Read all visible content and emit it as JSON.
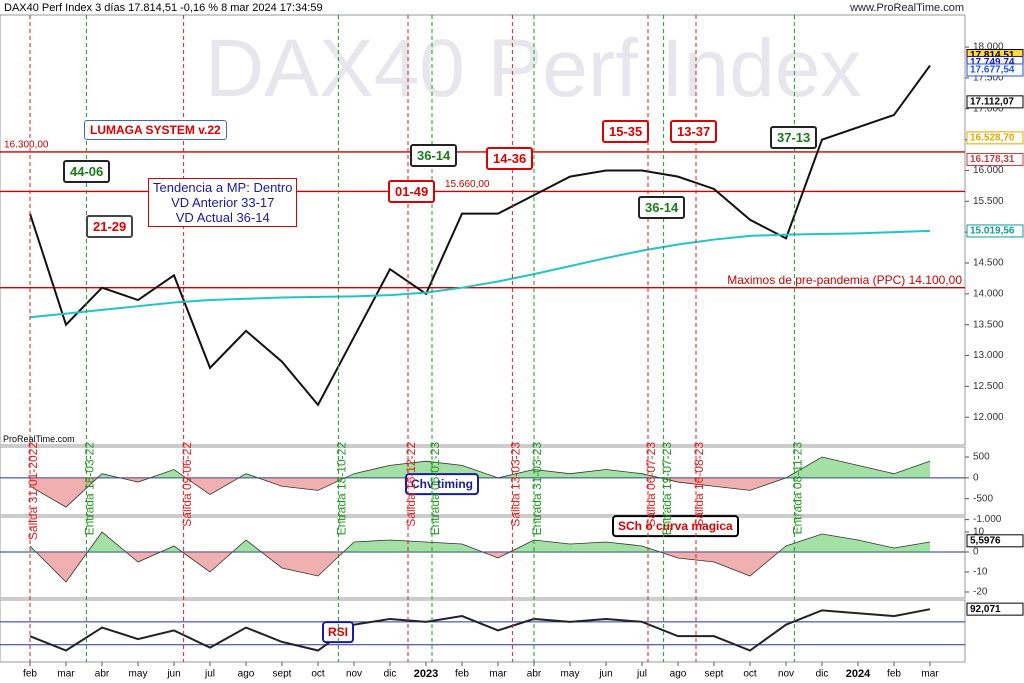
{
  "header": {
    "title": "DAX40 Perf Index 3 días 17.814,51 -0,16 % 8 mar 2024 17:34:59",
    "site": "www.ProRealTime.com",
    "watermark": "DAX40 Perf Index",
    "source": "ProRealTime.com",
    "system": "LUMAGA SYSTEM v.22",
    "trend": [
      "Tendencia a MP: Dentro",
      "VD Anterior 33-17",
      "VD Actual 36-14"
    ],
    "boxes": [
      "44-06",
      "21-29",
      "01-49",
      "36-14",
      "14-36",
      "15-35",
      "13-37",
      "37-13",
      "36-14"
    ]
  },
  "chart_data": [
    {
      "type": "line",
      "categories": [
        "feb",
        "mar",
        "abr",
        "may",
        "jun",
        "jul",
        "ago",
        "sept",
        "oct",
        "nov",
        "dic",
        "2023",
        "feb",
        "mar",
        "abr",
        "may",
        "jun",
        "jul",
        "ago",
        "sept",
        "oct",
        "nov",
        "dic",
        "2024",
        "feb",
        "mar"
      ],
      "series": [
        {
          "color": "#111111",
          "values": [
            15300,
            13500,
            14100,
            13900,
            14300,
            12800,
            13400,
            12900,
            12200,
            13300,
            14400,
            14000,
            15300,
            15300,
            15600,
            15900,
            16000,
            16000,
            15900,
            15700,
            15200,
            14900,
            16500,
            16700,
            16900,
            17700
          ]
        },
        {
          "color": "#22c4c4",
          "values": [
            13620,
            13680,
            13740,
            13800,
            13860,
            13900,
            13920,
            13940,
            13950,
            13960,
            13980,
            14020,
            14100,
            14200,
            14320,
            14450,
            14580,
            14700,
            14800,
            14880,
            14940,
            14960,
            14970,
            14980,
            15000,
            15020
          ]
        }
      ],
      "ylim": [
        11550,
        18520
      ],
      "yticks": [
        {
          "value": 12000,
          "label": "12.000"
        },
        {
          "value": 12500,
          "label": "12.500"
        },
        {
          "value": 13000,
          "label": "13.000"
        },
        {
          "value": 13500,
          "label": "13.500"
        },
        {
          "value": 14000,
          "label": "14.000"
        },
        {
          "value": 14500,
          "label": "14.500"
        },
        {
          "value": 15000,
          "label": "15.000"
        },
        {
          "value": 15500,
          "label": "15.500"
        },
        {
          "value": 16000,
          "label": "16.000"
        },
        {
          "value": 16500,
          "label": "16.500"
        },
        {
          "value": 17000,
          "label": "17.000"
        },
        {
          "value": 17500,
          "label": "17.500"
        },
        {
          "value": 18000,
          "label": "18.000"
        }
      ],
      "hlines": [
        {
          "value": 16300,
          "label": "16.300,00",
          "color": "#cc0000"
        },
        {
          "value": 15660,
          "label": "15.660,00",
          "color": "#cc0000"
        },
        {
          "value": 14100,
          "label": "Maximos de pre-pandemia (PPC) 14.100,00",
          "color": "#cc0000"
        }
      ],
      "price_tags": [
        {
          "value": 17814.51,
          "label": "17.814,51",
          "color": "#000000"
        },
        {
          "value": 17749.74,
          "label": "17.749,74",
          "color": "#1a1aa0"
        },
        {
          "value": 17677.54,
          "label": "17.677,54",
          "color": "#2255dd"
        },
        {
          "value": 17112.07,
          "label": "17.112,07",
          "color": "#000000"
        },
        {
          "value": 16528.7,
          "label": "16.528,70",
          "color": "#e0a800"
        },
        {
          "value": 16178.31,
          "label": "16.178,31",
          "color": "#c04040"
        },
        {
          "value": 15019.56,
          "label": "15.019,56",
          "color": "#159a9a"
        }
      ],
      "events": [
        "Salida 31-01-2022",
        "Entrada 18-03-22",
        "Salida 09-06-22",
        "Entrada 18-10-22",
        "Salida 16-12-22",
        "Entrada 06-01-23",
        "Salida 13-03-23",
        "Entrada 31-03-23",
        "Salida 06-07-23",
        "Entrada 19-07-23",
        "Salida 16-08-23",
        "Entrada 08-11-23"
      ]
    },
    {
      "type": "area",
      "title": "Chv timing",
      "color": "#33bb33",
      "negative_color": "#e05050",
      "values": [
        -200,
        -700,
        100,
        -100,
        200,
        -400,
        100,
        -200,
        -300,
        100,
        300,
        400,
        300,
        0,
        200,
        100,
        200,
        100,
        -100,
        -200,
        -300,
        0,
        500,
        300,
        100,
        400
      ],
      "ylim": [
        -890,
        740
      ],
      "yticks": [
        500,
        0,
        -500,
        {
          "value": -1000,
          "label": "-1.000"
        }
      ]
    },
    {
      "type": "area",
      "title": "SCh o curva magica",
      "color": "#33bb33",
      "negative_color": "#e05050",
      "values": [
        3,
        -15,
        10,
        -5,
        3,
        -10,
        6,
        -8,
        -12,
        5,
        6,
        5,
        4,
        -3,
        6,
        4,
        5,
        3,
        -3,
        -5,
        -12,
        3,
        9,
        6,
        2,
        5
      ],
      "ylim": [
        -23,
        17.5
      ],
      "yticks": [
        10,
        0,
        -10,
        -20
      ],
      "price_tags": [
        {
          "value": 5.5976,
          "label": "5,5976",
          "color": "#000000"
        }
      ]
    },
    {
      "type": "line",
      "title": "RSI",
      "color": "#222222",
      "values": [
        45,
        20,
        60,
        40,
        55,
        25,
        60,
        35,
        20,
        65,
        75,
        70,
        80,
        55,
        75,
        70,
        75,
        70,
        45,
        45,
        20,
        65,
        90,
        85,
        80,
        92
      ],
      "ylim": [
        0,
        108
      ],
      "levels": [
        70,
        30
      ],
      "price_tags": [
        {
          "value": 92.071,
          "label": "92,071",
          "color": "#000000"
        }
      ]
    }
  ]
}
